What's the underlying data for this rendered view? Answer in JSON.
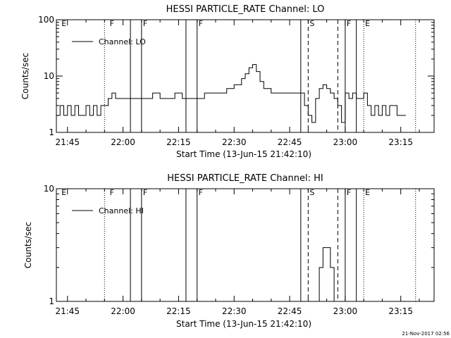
{
  "chart_data": [
    {
      "type": "line",
      "title": "HESSI PARTICLE_RATE Channel: LO",
      "xlabel": "Start Time (13-Jun-15 21:42:10)",
      "ylabel": "Counts/sec",
      "y_scale": "log",
      "ylim": [
        1,
        100
      ],
      "y_ticks": [
        1,
        10,
        100
      ],
      "y_tick_labels": [
        "1",
        "10",
        "100"
      ],
      "xlim": [
        "21:42",
        "23:24"
      ],
      "x_ticks": [
        "21:45",
        "22:00",
        "22:15",
        "22:30",
        "22:45",
        "23:00",
        "23:15"
      ],
      "x_tick_labels": [
        "21:45",
        "22:00",
        "22:15",
        "22:30",
        "22:45",
        "23:00",
        "23:15"
      ],
      "legend": {
        "label": "Channel: LO",
        "placement": "top-left"
      },
      "markers": [
        {
          "time": "21:43",
          "label": "E",
          "style": "none"
        },
        {
          "time": "21:55",
          "label": "",
          "style": "dotted"
        },
        {
          "time": "21:56",
          "label": "F",
          "style": "none"
        },
        {
          "time": "22:02",
          "label": "",
          "style": "solid"
        },
        {
          "time": "22:05",
          "label": "F",
          "style": "solid"
        },
        {
          "time": "22:17",
          "label": "",
          "style": "solid"
        },
        {
          "time": "22:20",
          "label": "F",
          "style": "solid"
        },
        {
          "time": "22:48",
          "label": "",
          "style": "solid"
        },
        {
          "time": "22:50",
          "label": "S",
          "style": "dashed"
        },
        {
          "time": "22:58",
          "label": "",
          "style": "dashed"
        },
        {
          "time": "23:00",
          "label": "F",
          "style": "solid"
        },
        {
          "time": "23:03",
          "label": "",
          "style": "solid"
        },
        {
          "time": "23:05",
          "label": "E",
          "style": "dotted"
        },
        {
          "time": "23:19",
          "label": "",
          "style": "dotted"
        }
      ],
      "series": [
        {
          "x": [
            "21:42",
            "21:43",
            "21:44",
            "21:45",
            "21:46",
            "21:47",
            "21:48",
            "21:49",
            "21:50",
            "21:51",
            "21:52",
            "21:53",
            "21:54",
            "21:55",
            "21:56",
            "21:57",
            "21:58",
            "21:59",
            "22:00",
            "22:02",
            "22:04",
            "22:06",
            "22:08",
            "22:10",
            "22:12",
            "22:14",
            "22:16",
            "22:18",
            "22:20",
            "22:22",
            "22:24",
            "22:26",
            "22:28",
            "22:30",
            "22:32",
            "22:33",
            "22:34",
            "22:35",
            "22:36",
            "22:37",
            "22:38",
            "22:40",
            "22:42",
            "22:44",
            "22:46",
            "22:48",
            "22:49",
            "22:50",
            "22:51",
            "22:52",
            "22:53",
            "22:54",
            "22:55",
            "22:56",
            "22:57",
            "22:58",
            "22:59",
            "23:00",
            "23:01",
            "23:02",
            "23:03",
            "23:04",
            "23:05",
            "23:06",
            "23:07",
            "23:08",
            "23:09",
            "23:10",
            "23:11",
            "23:12",
            "23:14",
            "23:16"
          ],
          "y": [
            2,
            3,
            2,
            3,
            2,
            3,
            2,
            2,
            3,
            2,
            3,
            2,
            3,
            3,
            4,
            5,
            4,
            4,
            4,
            4,
            4,
            4,
            5,
            4,
            4,
            5,
            4,
            4,
            4,
            5,
            5,
            5,
            6,
            7,
            9,
            11,
            14,
            16,
            12,
            8,
            6,
            5,
            5,
            5,
            5,
            5,
            3,
            2,
            1.5,
            4,
            6,
            7,
            6,
            5,
            4,
            3,
            1.5,
            5,
            4,
            5,
            4,
            4,
            5,
            3,
            2,
            3,
            2,
            3,
            2,
            3,
            2,
            2
          ]
        }
      ]
    },
    {
      "type": "line",
      "title": "HESSI PARTICLE_RATE Channel: HI",
      "xlabel": "Start Time (13-Jun-15 21:42:10)",
      "ylabel": "Counts/sec",
      "y_scale": "log",
      "ylim": [
        1,
        10
      ],
      "y_ticks": [
        1,
        10
      ],
      "y_tick_labels": [
        "1",
        "10"
      ],
      "xlim": [
        "21:42",
        "23:24"
      ],
      "x_ticks": [
        "21:45",
        "22:00",
        "22:15",
        "22:30",
        "22:45",
        "23:00",
        "23:15"
      ],
      "x_tick_labels": [
        "21:45",
        "22:00",
        "22:15",
        "22:30",
        "22:45",
        "23:00",
        "23:15"
      ],
      "legend": {
        "label": "Channel: HI",
        "placement": "top-left"
      },
      "markers": [
        {
          "time": "21:43",
          "label": "E",
          "style": "none"
        },
        {
          "time": "21:55",
          "label": "",
          "style": "dotted"
        },
        {
          "time": "21:56",
          "label": "F",
          "style": "none"
        },
        {
          "time": "22:02",
          "label": "",
          "style": "solid"
        },
        {
          "time": "22:05",
          "label": "F",
          "style": "solid"
        },
        {
          "time": "22:17",
          "label": "",
          "style": "solid"
        },
        {
          "time": "22:20",
          "label": "F",
          "style": "solid"
        },
        {
          "time": "22:48",
          "label": "",
          "style": "solid"
        },
        {
          "time": "22:50",
          "label": "S",
          "style": "dashed"
        },
        {
          "time": "22:58",
          "label": "",
          "style": "dashed"
        },
        {
          "time": "23:00",
          "label": "F",
          "style": "solid"
        },
        {
          "time": "23:03",
          "label": "",
          "style": "solid"
        },
        {
          "time": "23:05",
          "label": "E",
          "style": "dotted"
        },
        {
          "time": "23:19",
          "label": "",
          "style": "dotted"
        }
      ],
      "series": [
        {
          "x": [
            "22:52",
            "22:53",
            "22:54",
            "22:55",
            "22:56",
            "22:57"
          ],
          "y": [
            1,
            2,
            3,
            3,
            2,
            1
          ]
        }
      ]
    }
  ],
  "footer_timestamp": "21-Nov-2017 02:56"
}
